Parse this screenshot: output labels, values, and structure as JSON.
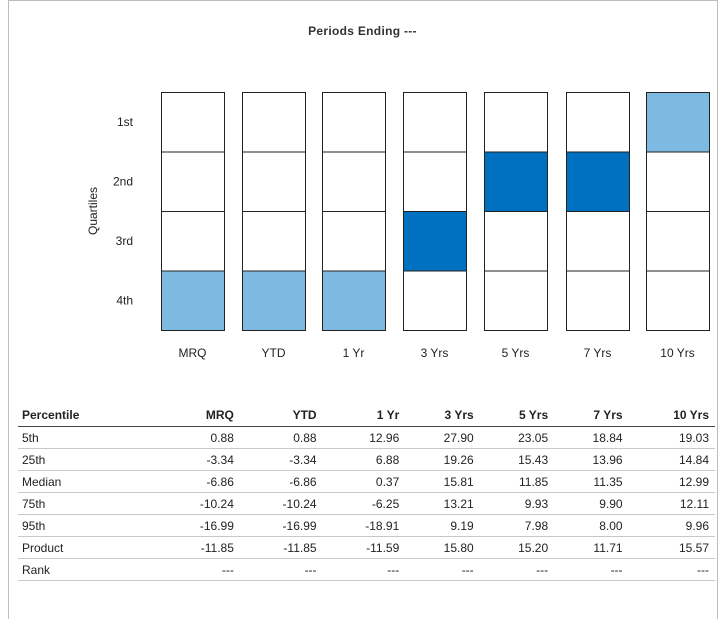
{
  "title": "Periods Ending ---",
  "chart_data": {
    "type": "heatmap",
    "title": "Periods Ending ---",
    "ylabel": "Quartiles",
    "quartile_labels": [
      "1st",
      "2nd",
      "3rd",
      "4th"
    ],
    "periods": [
      "MRQ",
      "YTD",
      "1 Yr",
      "3 Yrs",
      "5 Yrs",
      "7 Yrs",
      "10 Yrs"
    ],
    "highlighted_quartile": [
      4,
      4,
      4,
      3,
      2,
      2,
      1
    ],
    "highlight_shade": [
      "light",
      "light",
      "light",
      "dark",
      "dark",
      "dark",
      "light"
    ],
    "colors": {
      "light": "#7db9e0",
      "dark": "#0070c0",
      "empty": "#ffffff",
      "border": "#222222"
    }
  },
  "table": {
    "headers": [
      "Percentile",
      "MRQ",
      "YTD",
      "1 Yr",
      "3 Yrs",
      "5 Yrs",
      "7 Yrs",
      "10 Yrs"
    ],
    "rows": [
      [
        "5th",
        "0.88",
        "0.88",
        "12.96",
        "27.90",
        "23.05",
        "18.84",
        "19.03"
      ],
      [
        "25th",
        "-3.34",
        "-3.34",
        "6.88",
        "19.26",
        "15.43",
        "13.96",
        "14.84"
      ],
      [
        "Median",
        "-6.86",
        "-6.86",
        "0.37",
        "15.81",
        "11.85",
        "11.35",
        "12.99"
      ],
      [
        "75th",
        "-10.24",
        "-10.24",
        "-6.25",
        "13.21",
        "9.93",
        "9.90",
        "12.11"
      ],
      [
        "95th",
        "-16.99",
        "-16.99",
        "-18.91",
        "9.19",
        "7.98",
        "8.00",
        "9.96"
      ],
      [
        "Product",
        "-11.85",
        "-11.85",
        "-11.59",
        "15.80",
        "15.20",
        "11.71",
        "15.57"
      ],
      [
        "Rank",
        "---",
        "---",
        "---",
        "---",
        "---",
        "---",
        "---"
      ]
    ]
  }
}
